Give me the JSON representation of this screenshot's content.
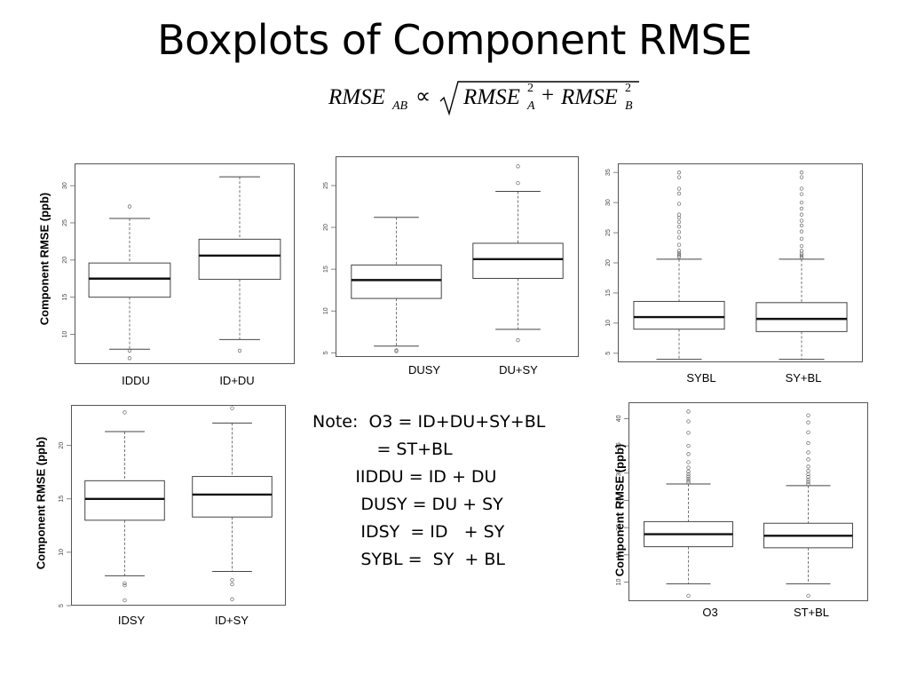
{
  "slide": {
    "title": "Boxplots of Component RMSE",
    "formula": {
      "lhs": "RMSE",
      "lhs_sub": "AB",
      "prop": "∝",
      "t1": "RMSE",
      "t1_sup": "2",
      "t1_sub": "A",
      "plus": "+",
      "t2": "RMSE",
      "t2_sup": "2",
      "t2_sub": "B"
    }
  },
  "note": {
    "lines": [
      "Note:  O3 = ID+DU+SY+BL",
      "            = ST+BL",
      "        IIDDU = ID + DU",
      "         DUSY = DU + SY",
      "         IDSY  = ID   + SY",
      "         SYBL =  SY  + BL"
    ]
  },
  "chart_data": [
    {
      "type": "boxplot",
      "ylabel": "Component RMSE (ppb)",
      "yticks": [
        10,
        15,
        20,
        25,
        30
      ],
      "ylim": [
        6,
        33
      ],
      "categories": [
        "IDDU",
        "ID+DU"
      ],
      "boxes": [
        {
          "whisker_low": 8,
          "q1": 15,
          "median": 17.5,
          "q3": 19.6,
          "whisker_high": 25.6,
          "outliers": [
            7.8,
            6.8,
            27.2
          ]
        },
        {
          "whisker_low": 9.3,
          "q1": 17.4,
          "median": 20.6,
          "q3": 22.8,
          "whisker_high": 31.2,
          "outliers": [
            7.8
          ]
        }
      ]
    },
    {
      "type": "boxplot",
      "ylabel": "",
      "yticks": [
        5,
        10,
        15,
        20,
        25
      ],
      "ylim": [
        4.5,
        28.5
      ],
      "categories": [
        "DUSY",
        "DU+SY"
      ],
      "boxes": [
        {
          "whisker_low": 5.8,
          "q1": 11.5,
          "median": 13.7,
          "q3": 15.5,
          "whisker_high": 21.2,
          "outliers": [
            5.3,
            5.2
          ]
        },
        {
          "whisker_low": 7.8,
          "q1": 13.9,
          "median": 16.2,
          "q3": 18.1,
          "whisker_high": 24.3,
          "outliers": [
            6.5,
            25.3,
            27.3
          ]
        }
      ]
    },
    {
      "type": "boxplot",
      "ylabel": "",
      "yticks": [
        5,
        10,
        15,
        20,
        25,
        30,
        35
      ],
      "ylim": [
        3.5,
        36.5
      ],
      "categories": [
        "SYBL",
        "SY+BL"
      ],
      "boxes": [
        {
          "whisker_low": 4,
          "q1": 9,
          "median": 11,
          "q3": 13.6,
          "whisker_high": 20.6,
          "outliers": [
            21,
            21.3,
            21.6,
            22,
            23,
            24.2,
            25.1,
            26,
            26.8,
            27.5,
            28,
            29.8,
            31.5,
            32.3,
            34.2,
            35
          ]
        },
        {
          "whisker_low": 4,
          "q1": 8.6,
          "median": 10.7,
          "q3": 13.4,
          "whisker_high": 20.6,
          "outliers": [
            20.9,
            21.2,
            21.5,
            22,
            22.8,
            24,
            25.2,
            26.2,
            27,
            28,
            29,
            30,
            31.4,
            32.3,
            34.2,
            35
          ]
        }
      ]
    },
    {
      "type": "boxplot",
      "ylabel": "Component RMSE (ppb)",
      "yticks": [
        5,
        10,
        15,
        20
      ],
      "ylim": [
        5,
        23.8
      ],
      "categories": [
        "IDSY",
        "ID+SY"
      ],
      "boxes": [
        {
          "whisker_low": 7.8,
          "q1": 13,
          "median": 15,
          "q3": 16.7,
          "whisker_high": 21.3,
          "outliers": [
            7.1,
            6.9,
            5.5,
            23.1
          ]
        },
        {
          "whisker_low": 8.2,
          "q1": 13.3,
          "median": 15.4,
          "q3": 17.1,
          "whisker_high": 22.1,
          "outliers": [
            7.4,
            7.0,
            5.6,
            23.5
          ]
        }
      ]
    },
    {
      "type": "boxplot",
      "ylabel": "Component RMSE (ppb)",
      "yticks": [
        10,
        15,
        20,
        25,
        30,
        35,
        40
      ],
      "ylim": [
        6.5,
        43
      ],
      "categories": [
        "O3",
        "ST+BL"
      ],
      "boxes": [
        {
          "whisker_low": 9.7,
          "q1": 16.5,
          "median": 18.8,
          "q3": 21.1,
          "whisker_high": 28,
          "outliers": [
            7.5,
            28.3,
            28.6,
            29,
            29.4,
            29.8,
            30.3,
            31,
            32,
            33.5,
            35,
            37.4,
            39.5,
            41.3
          ]
        },
        {
          "whisker_low": 9.7,
          "q1": 16.3,
          "median": 18.5,
          "q3": 20.8,
          "whisker_high": 27.7,
          "outliers": [
            7.5,
            28,
            28.4,
            28.8,
            29.3,
            29.8,
            30.4,
            31.2,
            32.5,
            33.8,
            35.5,
            37.5,
            39.3,
            40.6
          ]
        }
      ]
    }
  ]
}
